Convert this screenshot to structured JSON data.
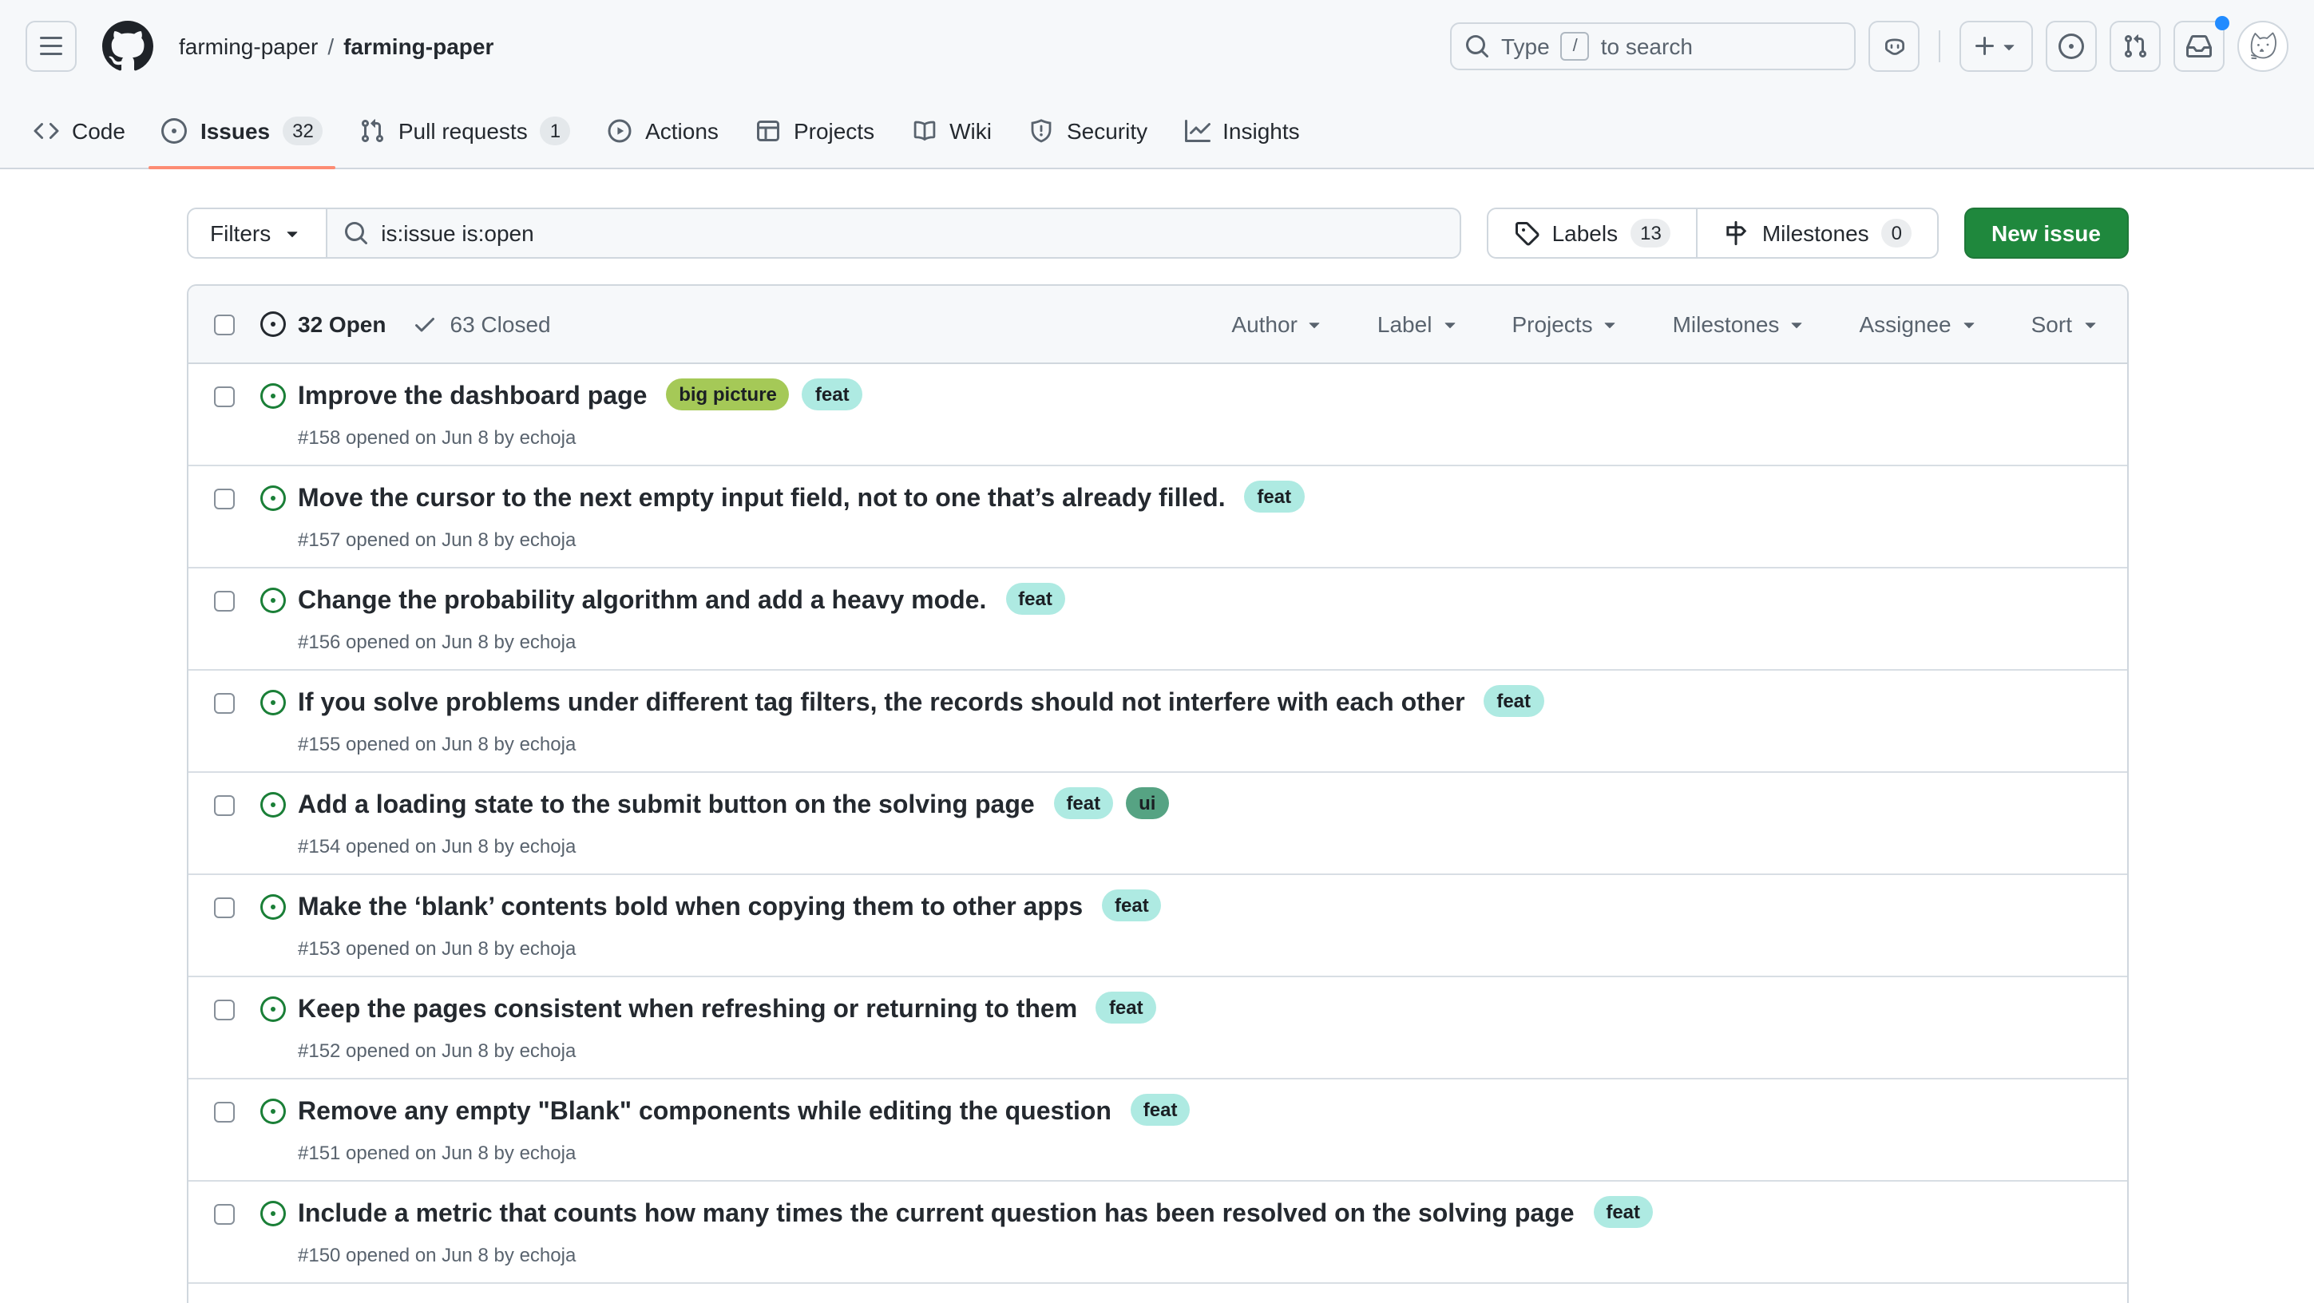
{
  "header": {
    "owner": "farming-paper",
    "separator": "/",
    "repo": "farming-paper",
    "search": {
      "prefix": "Type",
      "key": "/",
      "suffix": "to search"
    }
  },
  "nav": {
    "tabs": [
      {
        "label": "Code",
        "icon": "code",
        "count": null,
        "active": false
      },
      {
        "label": "Issues",
        "icon": "issue-opened",
        "count": "32",
        "active": true
      },
      {
        "label": "Pull requests",
        "icon": "git-pull-request",
        "count": "1",
        "active": false
      },
      {
        "label": "Actions",
        "icon": "play",
        "count": null,
        "active": false
      },
      {
        "label": "Projects",
        "icon": "table",
        "count": null,
        "active": false
      },
      {
        "label": "Wiki",
        "icon": "book",
        "count": null,
        "active": false
      },
      {
        "label": "Security",
        "icon": "shield",
        "count": null,
        "active": false
      },
      {
        "label": "Insights",
        "icon": "graph",
        "count": null,
        "active": false
      }
    ]
  },
  "toolbar": {
    "filters_label": "Filters",
    "search_query": "is:issue is:open",
    "labels_label": "Labels",
    "labels_count": "13",
    "milestones_label": "Milestones",
    "milestones_count": "0",
    "new_issue_label": "New issue"
  },
  "list_header": {
    "open_label": "32 Open",
    "closed_label": "63 Closed",
    "filters": [
      "Author",
      "Label",
      "Projects",
      "Milestones",
      "Assignee",
      "Sort"
    ]
  },
  "label_styles": {
    "big picture": {
      "bg": "#a5c957",
      "fg": "#1b1f24"
    },
    "feat": {
      "bg": "#aeeae2",
      "fg": "#1b1f24"
    },
    "ui": {
      "bg": "#56a383",
      "fg": "#1b1f24"
    }
  },
  "issues": [
    {
      "title": "Improve the dashboard page",
      "labels": [
        "big picture",
        "feat"
      ],
      "meta": "#158 opened on Jun 8 by echoja"
    },
    {
      "title": "Move the cursor to the next empty input field, not to one that’s already filled.",
      "labels": [
        "feat"
      ],
      "meta": "#157 opened on Jun 8 by echoja"
    },
    {
      "title": "Change the probability algorithm and add a heavy mode.",
      "labels": [
        "feat"
      ],
      "meta": "#156 opened on Jun 8 by echoja"
    },
    {
      "title": "If you solve problems under different tag filters, the records should not interfere with each other",
      "labels": [
        "feat"
      ],
      "meta": "#155 opened on Jun 8 by echoja"
    },
    {
      "title": "Add a loading state to the submit button on the solving page",
      "labels": [
        "feat",
        "ui"
      ],
      "meta": "#154 opened on Jun 8 by echoja"
    },
    {
      "title": "Make the ‘blank’ contents bold when copying them to other apps",
      "labels": [
        "feat"
      ],
      "meta": "#153 opened on Jun 8 by echoja"
    },
    {
      "title": "Keep the pages consistent when refreshing or returning to them",
      "labels": [
        "feat"
      ],
      "meta": "#152 opened on Jun 8 by echoja"
    },
    {
      "title": "Remove any empty \"Blank\" components while editing the question",
      "labels": [
        "feat"
      ],
      "meta": "#151 opened on Jun 8 by echoja"
    },
    {
      "title": "Include a metric that counts how many times the current question has been resolved on the solving page",
      "labels": [
        "feat"
      ],
      "meta": "#150 opened on Jun 8 by echoja"
    }
  ],
  "colors": {
    "accent_underline": "#fd8c73",
    "new_issue_green": "#1f883d",
    "open_icon_green": "#1a7f37",
    "notification_dot": "#218bff"
  }
}
